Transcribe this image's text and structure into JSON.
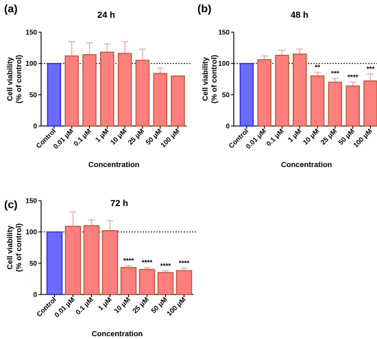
{
  "colors": {
    "control_fill": "#6b6bff",
    "control_stroke": "#2a2ad6",
    "treated_fill": "#ff7f7f",
    "treated_stroke": "#b85a3a",
    "error_bar": "#e8a0a0",
    "reference_line": "#000000"
  },
  "chart_data": [
    {
      "panel_label": "(a)",
      "type": "bar",
      "title": "24 h",
      "xlabel": "Concentration",
      "ylabel_line1": "Cell viability",
      "ylabel_line2": "(% of control)",
      "ylim": [
        0,
        150
      ],
      "yticks": [
        "0",
        "50",
        "100",
        "150"
      ],
      "reference_line": 100,
      "categories": [
        "Control",
        "0.01 μM",
        "0.1 μM",
        "1 μM",
        "10 μM",
        "25 μM",
        "50 μM",
        "100 μM"
      ],
      "values": [
        100,
        112,
        114,
        118,
        116,
        105,
        84,
        80
      ],
      "errors": [
        0,
        23,
        19,
        13,
        19,
        18,
        9,
        0
      ],
      "significance": [
        "",
        "",
        "",
        "",
        "",
        "",
        "",
        ""
      ]
    },
    {
      "panel_label": "(b)",
      "type": "bar",
      "title": "48 h",
      "xlabel": "Concentration",
      "ylabel_line1": "Cell viability",
      "ylabel_line2": "(% of control)",
      "ylim": [
        0,
        150
      ],
      "yticks": [
        "0",
        "50",
        "100",
        "150"
      ],
      "reference_line": 100,
      "categories": [
        "Control",
        "0.01 μM",
        "0.1 μM",
        "1 μM",
        "10 μM",
        "25 μM",
        "50 μM",
        "100 μM"
      ],
      "values": [
        100,
        106,
        113,
        115,
        80,
        70,
        64,
        72
      ],
      "errors": [
        0,
        6,
        8,
        8,
        6,
        6,
        6,
        11
      ],
      "significance": [
        "",
        "",
        "",
        "",
        "**",
        "***",
        "****",
        "***"
      ]
    },
    {
      "panel_label": "(c)",
      "type": "bar",
      "title": "72 h",
      "xlabel": "Concentration",
      "ylabel_line1": "Cell viability",
      "ylabel_line2": "(% of control)",
      "ylim": [
        0,
        150
      ],
      "yticks": [
        "0",
        "50",
        "100",
        "150"
      ],
      "reference_line": 100,
      "categories": [
        "Control",
        "0.01 μM",
        "0.1 μM",
        "1 μM",
        "10 μM",
        "25 μM",
        "50 μM",
        "100 μM"
      ],
      "values": [
        100,
        109,
        110,
        102,
        43,
        40,
        35,
        38
      ],
      "errors": [
        0,
        23,
        9,
        16,
        3,
        3,
        3,
        4
      ],
      "significance": [
        "",
        "",
        "",
        "",
        "****",
        "****",
        "****",
        "****"
      ]
    }
  ]
}
